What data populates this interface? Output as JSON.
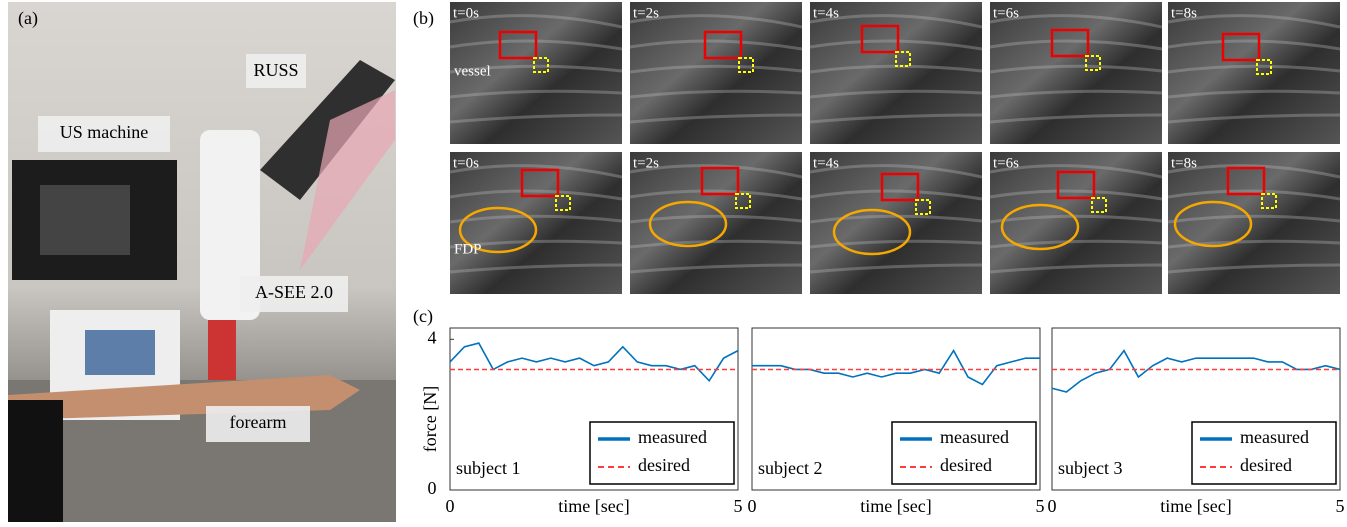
{
  "panel_a": {
    "label": "(a)",
    "labels": [
      "RUSS",
      "US machine",
      "A-SEE 2.0",
      "forearm"
    ]
  },
  "panel_b": {
    "label": "(b)",
    "times": [
      "t=0s",
      "t=2s",
      "t=4s",
      "t=6s",
      "t=8s"
    ],
    "row_labels": [
      "vessel",
      "FDP"
    ]
  },
  "panel_c": {
    "label": "(c)"
  },
  "chart_data": [
    {
      "type": "line",
      "title": "subject 1",
      "xlabel": "time [sec]",
      "ylabel": "force [N]",
      "xlim": [
        0,
        5
      ],
      "xticks": [
        0,
        5
      ],
      "ylim": [
        0,
        4.3
      ],
      "yticks": [
        0,
        4
      ],
      "series": [
        {
          "name": "measured",
          "color": "#0072bd",
          "x": [
            0,
            0.25,
            0.5,
            0.75,
            1,
            1.25,
            1.5,
            1.75,
            2,
            2.25,
            2.5,
            2.75,
            3,
            3.25,
            3.5,
            3.75,
            4,
            4.25,
            4.5,
            4.75,
            5
          ],
          "values": [
            3.4,
            3.8,
            3.9,
            3.2,
            3.4,
            3.5,
            3.4,
            3.5,
            3.4,
            3.5,
            3.3,
            3.4,
            3.8,
            3.4,
            3.3,
            3.3,
            3.2,
            3.3,
            2.9,
            3.5,
            3.7
          ]
        },
        {
          "name": "desired",
          "color": "#ff3b3b",
          "dashed": true,
          "x": [
            0,
            5
          ],
          "values": [
            3.2,
            3.2
          ]
        }
      ]
    },
    {
      "type": "line",
      "title": "subject 2",
      "xlabel": "time [sec]",
      "xlim": [
        0,
        5
      ],
      "xticks": [
        0,
        5
      ],
      "ylim": [
        0,
        4.3
      ],
      "series": [
        {
          "name": "measured",
          "color": "#0072bd",
          "x": [
            0,
            0.25,
            0.5,
            0.75,
            1,
            1.25,
            1.5,
            1.75,
            2,
            2.25,
            2.5,
            2.75,
            3,
            3.25,
            3.5,
            3.75,
            4,
            4.25,
            4.5,
            4.75,
            5
          ],
          "values": [
            3.3,
            3.3,
            3.3,
            3.2,
            3.2,
            3.1,
            3.1,
            3.0,
            3.1,
            3.0,
            3.1,
            3.1,
            3.2,
            3.1,
            3.7,
            3.0,
            2.8,
            3.3,
            3.4,
            3.5,
            3.5
          ]
        },
        {
          "name": "desired",
          "color": "#ff3b3b",
          "dashed": true,
          "x": [
            0,
            5
          ],
          "values": [
            3.2,
            3.2
          ]
        }
      ]
    },
    {
      "type": "line",
      "title": "subject 3",
      "xlabel": "time [sec]",
      "xlim": [
        0,
        5
      ],
      "xticks": [
        0,
        5
      ],
      "ylim": [
        0,
        4.3
      ],
      "series": [
        {
          "name": "measured",
          "color": "#0072bd",
          "x": [
            0,
            0.25,
            0.5,
            0.75,
            1,
            1.25,
            1.5,
            1.75,
            2,
            2.25,
            2.5,
            2.75,
            3,
            3.25,
            3.5,
            3.75,
            4,
            4.25,
            4.5,
            4.75,
            5
          ],
          "values": [
            2.7,
            2.6,
            2.9,
            3.1,
            3.2,
            3.7,
            3.0,
            3.3,
            3.5,
            3.4,
            3.5,
            3.5,
            3.5,
            3.5,
            3.5,
            3.4,
            3.4,
            3.2,
            3.2,
            3.3,
            3.2
          ]
        },
        {
          "name": "desired",
          "color": "#ff3b3b",
          "dashed": true,
          "x": [
            0,
            5
          ],
          "values": [
            3.2,
            3.2
          ]
        }
      ]
    }
  ]
}
